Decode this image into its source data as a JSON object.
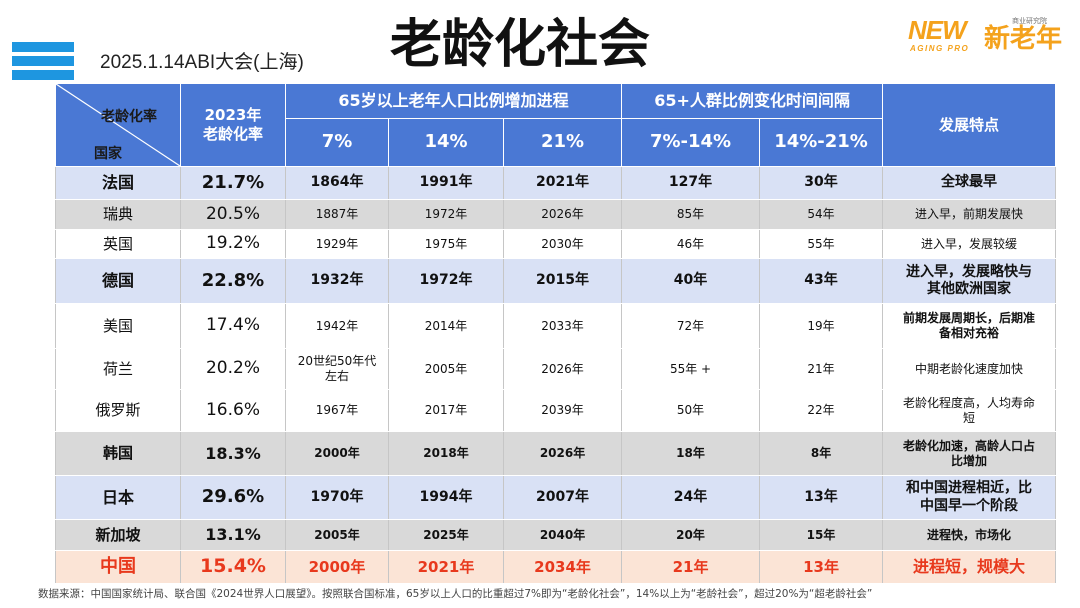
{
  "slide": {
    "title": "老龄化社会",
    "event": "2025.1.14ABI大会(上海)",
    "menu_icon": "menu-bars-icon",
    "logo": {
      "new": "NEW",
      "aging_pro": "AGING PRO",
      "brand_cn": "新老年",
      "tagline_cn": "商业研究院"
    }
  },
  "colors": {
    "header_blue": "#4a78d4",
    "row_blue": "#d9e1f5",
    "row_grey": "#d9d9d9",
    "row_pink": "#fbe4d6",
    "china_red": "#e8391d",
    "logo_orange": "#f4a21c",
    "icon_blue": "#1e96e0"
  },
  "table": {
    "header": {
      "corner_top": "老龄化率",
      "corner_bottom": "国家",
      "rate_col": [
        "2023年",
        "老龄化率"
      ],
      "group1": "65岁以上老年人口比例增加进程",
      "group1_cols": [
        "7%",
        "14%",
        "21%"
      ],
      "group2": "65+人群比例变化时间间隔",
      "group2_cols": [
        "7%-14%",
        "14%-21%"
      ],
      "feature_col": "发展特点"
    },
    "rows": [
      {
        "country": "法国",
        "rate": "21.7%",
        "y7": "1864年",
        "y14": "1991年",
        "y21": "2021年",
        "d7_14": "127年",
        "d14_21": "30年",
        "feature": "全球最早"
      },
      {
        "country": "瑞典",
        "rate": "20.5%",
        "y7": "1887年",
        "y14": "1972年",
        "y21": "2026年",
        "d7_14": "85年",
        "d14_21": "54年",
        "feature": "进入早，前期发展快"
      },
      {
        "country": "英国",
        "rate": "19.2%",
        "y7": "1929年",
        "y14": "1975年",
        "y21": "2030年",
        "d7_14": "46年",
        "d14_21": "55年",
        "feature": "进入早，发展较缓"
      },
      {
        "country": "德国",
        "rate": "22.8%",
        "y7": "1932年",
        "y14": "1972年",
        "y21": "2015年",
        "d7_14": "40年",
        "d14_21": "43年",
        "feature": "进入早，发展略快与其他欧洲国家"
      },
      {
        "country": "美国",
        "rate": "17.4%",
        "y7": "1942年",
        "y14": "2014年",
        "y21": "2033年",
        "d7_14": "72年",
        "d14_21": "19年",
        "feature": "前期发展周期长，后期准备相对充裕"
      },
      {
        "country": "荷兰",
        "rate": "20.2%",
        "y7": "20世纪50年代左右",
        "y14": "2005年",
        "y21": "2026年",
        "d7_14": "55年 +",
        "d14_21": "21年",
        "feature": "中期老龄化速度加快"
      },
      {
        "country": "俄罗斯",
        "rate": "16.6%",
        "y7": "1967年",
        "y14": "2017年",
        "y21": "2039年",
        "d7_14": "50年",
        "d14_21": "22年",
        "feature": "老龄化程度高，人均寿命短"
      },
      {
        "country": "韩国",
        "rate": "18.3%",
        "y7": "2000年",
        "y14": "2018年",
        "y21": "2026年",
        "d7_14": "18年",
        "d14_21": "8年",
        "feature": "老龄化加速，高龄人口占比增加"
      },
      {
        "country": "日本",
        "rate": "29.6%",
        "y7": "1970年",
        "y14": "1994年",
        "y21": "2007年",
        "d7_14": "24年",
        "d14_21": "13年",
        "feature": "和中国进程相近，比中国早一个阶段"
      },
      {
        "country": "新加坡",
        "rate": "13.1%",
        "y7": "2005年",
        "y14": "2025年",
        "y21": "2040年",
        "d7_14": "20年",
        "d14_21": "15年",
        "feature": "进程快，市场化"
      },
      {
        "country": "中国",
        "rate": "15.4%",
        "y7": "2000年",
        "y14": "2021年",
        "y21": "2034年",
        "d7_14": "21年",
        "d14_21": "13年",
        "feature": "进程短，规模大"
      }
    ]
  },
  "footer": {
    "source": "数据来源：中国国家统计局、联合国《2024世界人口展望》。按照联合国标准，65岁以上人口的比重超过7%即为“老龄化社会”，14%以上为“老龄社会”，超过20%为“超老龄社会”"
  }
}
